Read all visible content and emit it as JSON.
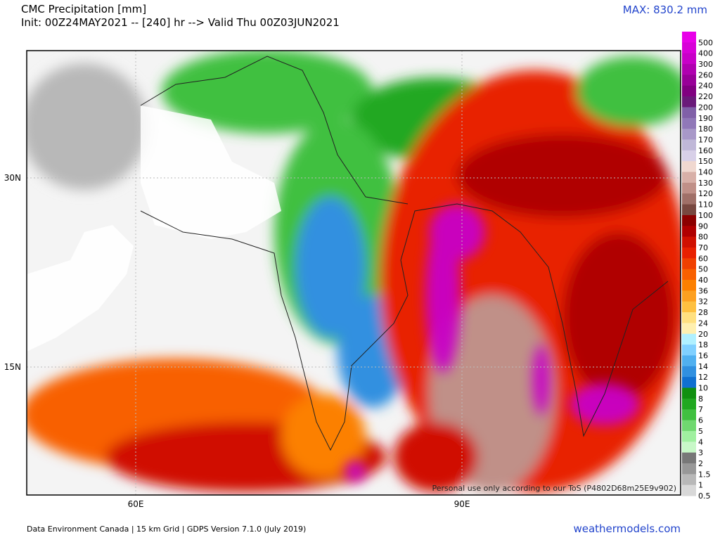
{
  "header": {
    "title": "CMC Precipitation [mm]",
    "init": "Init: 00Z24MAY2021 -- [240] hr --> Valid Thu 00Z03JUN2021",
    "max": "MAX: 830.2 mm"
  },
  "map": {
    "lat_labels": [
      "30N",
      "15N"
    ],
    "lon_labels": [
      "60E",
      "90E"
    ],
    "watermark": "Personal use only according to our ToS (P4802D68m25E9v902)"
  },
  "colorbar": {
    "levels": [
      500,
      400,
      300,
      260,
      240,
      220,
      200,
      190,
      180,
      170,
      160,
      150,
      140,
      130,
      120,
      110,
      100,
      90,
      80,
      70,
      60,
      50,
      40,
      36,
      32,
      28,
      24,
      20,
      18,
      16,
      14,
      12,
      10,
      8,
      7,
      6,
      5,
      4,
      3,
      2,
      1.5,
      1,
      0.5
    ],
    "colors": [
      "#e800e8",
      "#d800d8",
      "#c800c8",
      "#b000b0",
      "#980098",
      "#800080",
      "#6a1a7a",
      "#8060a8",
      "#9078b8",
      "#a898c8",
      "#c0b8d8",
      "#d8d0e8",
      "#f0d8d0",
      "#d8b0a8",
      "#c09088",
      "#a07068",
      "#784840",
      "#8c0000",
      "#b00000",
      "#d01000",
      "#e82000",
      "#f04000",
      "#f86000",
      "#fc8000",
      "#fda020",
      "#fec040",
      "#ffe080",
      "#fff0b0",
      "#b0f0ff",
      "#80d0ff",
      "#50b0f0",
      "#3090e0",
      "#1070d0",
      "#109010",
      "#20a820",
      "#40c040",
      "#70d870",
      "#a0f0a0",
      "#c8f8c8",
      "#787878",
      "#989898",
      "#b8b8b8",
      "#d8d8d8"
    ]
  },
  "footer": {
    "source": "Data Environment Canada | 15 km Grid | GDPS Version 7.1.0 (July 2019)",
    "site": "weathermodels.com"
  }
}
